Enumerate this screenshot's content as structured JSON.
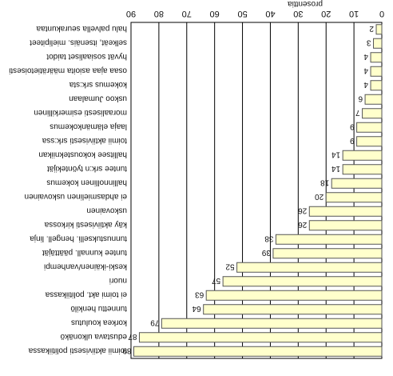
{
  "chart_data": {
    "type": "bar",
    "orientation": "horizontal",
    "rotated_180": true,
    "xlabel": "prosenttia",
    "xlim": [
      0,
      90
    ],
    "xticks": [
      0,
      10,
      20,
      30,
      40,
      50,
      60,
      70,
      80,
      90
    ],
    "grid": true,
    "colors": {
      "bar_fill": "#ffffcc",
      "bar_stroke": "#555555",
      "grid": "#000000",
      "text": "#111111"
    },
    "categories": [
      "toimii aktiivisesti politiikassa",
      "edustava ulkonäkö",
      "korkea koulutus",
      "tunnettu henkilö",
      "ei toimi akt. politiikassa",
      "nuori",
      "keski-ikäinen/vanhempi",
      "tuntee kunnall. päättäjät",
      "tunnustukselli. hengell. linja",
      "käy aktiivisesti kirkossa",
      "uskovainen",
      "ei ahdasmielinen uskovainen",
      "hallinnollinen kokemus",
      "tuntee srk:n työntekijät",
      "hallitsee kokoustekniikan",
      "toimii aktiivisesti srk:ssa",
      "laaja elämänkokemus",
      "moraalisesti esimerkillinen",
      "uskoo Jumalaan",
      "kokemus srk:sta",
      "osaa ajaa asioita määrätietoisesti",
      "hyvät sosiaaliset taidot",
      "selkeät, itsenäis. mielipiteet",
      "halu palvella seurakuntaa"
    ],
    "values": [
      89,
      87,
      79,
      64,
      63,
      57,
      52,
      39,
      38,
      26,
      26,
      20,
      18,
      14,
      14,
      9,
      9,
      7,
      6,
      4,
      4,
      4,
      3,
      2
    ]
  }
}
